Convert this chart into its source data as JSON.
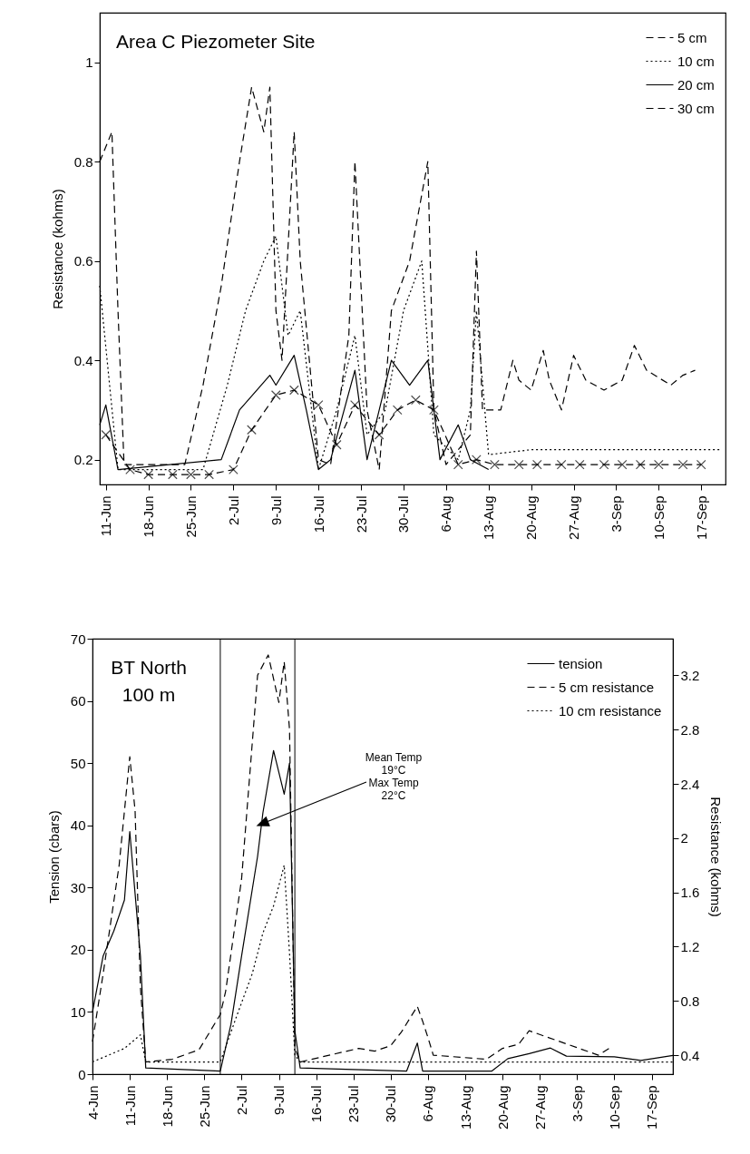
{
  "chart_data": [
    {
      "type": "line",
      "title": "Area C Piezometer Site",
      "ylabel": "Resistance (kohms)",
      "xlim": [
        "--06-10",
        "--09-21"
      ],
      "xticks": [
        {
          "value": "--06-11",
          "label": "11-Jun"
        },
        {
          "value": "--06-18",
          "label": "18-Jun"
        },
        {
          "value": "--06-25",
          "label": "25-Jun"
        },
        {
          "value": "--07-02",
          "label": "2-Jul"
        },
        {
          "value": "--07-09",
          "label": "9-Jul"
        },
        {
          "value": "--07-16",
          "label": "16-Jul"
        },
        {
          "value": "--07-23",
          "label": "23-Jul"
        },
        {
          "value": "--07-30",
          "label": "30-Jul"
        },
        {
          "value": "--08-06",
          "label": "6-Aug"
        },
        {
          "value": "--08-13",
          "label": "13-Aug"
        },
        {
          "value": "--08-20",
          "label": "20-Aug"
        },
        {
          "value": "--08-27",
          "label": "27-Aug"
        },
        {
          "value": "--09-03",
          "label": "3-Sep"
        },
        {
          "value": "--09-10",
          "label": "10-Sep"
        },
        {
          "value": "--09-17",
          "label": "17-Sep"
        }
      ],
      "ylim": [
        0.15,
        1.1
      ],
      "yticks": [
        0.2,
        0.4,
        0.6,
        0.8,
        1
      ],
      "legend": "top right",
      "series": [
        {
          "name": "5 cm",
          "color": "#000000",
          "line_style": "dashed",
          "x": [
            "--06-10",
            "--06-12",
            "--06-13",
            "--06-14",
            "--06-24",
            "--06-27",
            "--06-30",
            "--07-03",
            "--07-05",
            "--07-07",
            "--07-08",
            "--07-09",
            "--07-10",
            "--07-12",
            "--07-13",
            "--07-16",
            "--07-18",
            "--07-21",
            "--07-22",
            "--07-24",
            "--07-26",
            "--07-28",
            "--07-31",
            "--08-03",
            "--08-04",
            "--08-06",
            "--08-10",
            "--08-11",
            "--08-12",
            "--08-15",
            "--08-17",
            "--08-18",
            "--08-20",
            "--08-22",
            "--08-23",
            "--08-25",
            "--08-27",
            "--08-29",
            "--09-01",
            "--09-04",
            "--09-06",
            "--09-08",
            "--09-12",
            "--09-14",
            "--09-16"
          ],
          "values": [
            0.8,
            0.86,
            0.5,
            0.19,
            0.19,
            0.35,
            0.55,
            0.8,
            0.95,
            0.86,
            0.95,
            0.5,
            0.4,
            0.86,
            0.6,
            0.2,
            0.19,
            0.45,
            0.8,
            0.3,
            0.18,
            0.5,
            0.6,
            0.8,
            0.3,
            0.19,
            0.25,
            0.62,
            0.3,
            0.3,
            0.4,
            0.36,
            0.34,
            0.42,
            0.36,
            0.3,
            0.41,
            0.36,
            0.34,
            0.36,
            0.43,
            0.38,
            0.35,
            0.37,
            0.38
          ]
        },
        {
          "name": "10 cm",
          "color": "#000000",
          "line_style": "dotted",
          "x": [
            "--06-10",
            "--06-13",
            "--06-27",
            "--07-01",
            "--07-04",
            "--07-07",
            "--07-09",
            "--07-11",
            "--07-13",
            "--07-16",
            "--07-19",
            "--07-22",
            "--07-24",
            "--07-27",
            "--07-30",
            "--08-02",
            "--08-04",
            "--08-08",
            "--08-10",
            "--08-11",
            "--08-13",
            "--08-20",
            "--09-20"
          ],
          "values": [
            0.55,
            0.18,
            0.18,
            0.35,
            0.5,
            0.6,
            0.65,
            0.45,
            0.5,
            0.18,
            0.3,
            0.45,
            0.25,
            0.3,
            0.5,
            0.6,
            0.25,
            0.2,
            0.3,
            0.5,
            0.21,
            0.22,
            0.22
          ]
        },
        {
          "name": "20 cm",
          "color": "#000000",
          "line_style": "solid",
          "x": [
            "--06-10",
            "--06-11",
            "--06-13",
            "--06-30",
            "--07-03",
            "--07-08",
            "--07-09",
            "--07-12",
            "--07-14",
            "--07-16",
            "--07-18",
            "--07-22",
            "--07-24",
            "--07-26",
            "--07-28",
            "--07-31",
            "--08-03",
            "--08-05",
            "--08-08",
            "--08-10",
            "--08-13"
          ],
          "values": [
            0.27,
            0.31,
            0.18,
            0.2,
            0.3,
            0.37,
            0.35,
            0.41,
            0.3,
            0.18,
            0.2,
            0.38,
            0.2,
            0.3,
            0.4,
            0.35,
            0.4,
            0.2,
            0.27,
            0.2,
            0.18
          ]
        },
        {
          "name": "30 cm",
          "color": "#000000",
          "line_style": "dashed",
          "marker": "cross",
          "x": [
            "--06-11",
            "--06-15",
            "--06-18",
            "--06-22",
            "--06-25",
            "--06-28",
            "--07-02",
            "--07-05",
            "--07-09",
            "--07-12",
            "--07-16",
            "--07-19",
            "--07-22",
            "--07-26",
            "--07-29",
            "--08-01",
            "--08-04",
            "--08-08",
            "--08-11",
            "--08-14",
            "--08-18",
            "--08-21",
            "--08-25",
            "--08-28",
            "--09-01",
            "--09-04",
            "--09-07",
            "--09-10",
            "--09-14",
            "--09-17"
          ],
          "values": [
            0.25,
            0.18,
            0.17,
            0.17,
            0.17,
            0.17,
            0.18,
            0.26,
            0.33,
            0.34,
            0.31,
            0.23,
            0.31,
            0.25,
            0.3,
            0.32,
            0.3,
            0.19,
            0.2,
            0.19,
            0.19,
            0.19,
            0.19,
            0.19,
            0.19,
            0.19,
            0.19,
            0.19,
            0.19,
            0.19
          ]
        }
      ]
    },
    {
      "type": "line",
      "title": "BT North\n100 m",
      "ylabel": "Tension (cbars)",
      "y2label": "Resistance (kohms)",
      "xlim": [
        "--06-04",
        "--09-21"
      ],
      "xticks": [
        {
          "value": "--06-04",
          "label": "4-Jun"
        },
        {
          "value": "--06-11",
          "label": "11-Jun"
        },
        {
          "value": "--06-18",
          "label": "18-Jun"
        },
        {
          "value": "--06-25",
          "label": "25-Jun"
        },
        {
          "value": "--07-02",
          "label": "2-Jul"
        },
        {
          "value": "--07-09",
          "label": "9-Jul"
        },
        {
          "value": "--07-16",
          "label": "16-Jul"
        },
        {
          "value": "--07-23",
          "label": "23-Jul"
        },
        {
          "value": "--07-30",
          "label": "30-Jul"
        },
        {
          "value": "--08-06",
          "label": "6-Aug"
        },
        {
          "value": "--08-13",
          "label": "13-Aug"
        },
        {
          "value": "--08-20",
          "label": "20-Aug"
        },
        {
          "value": "--08-27",
          "label": "27-Aug"
        },
        {
          "value": "--09-03",
          "label": "3-Sep"
        },
        {
          "value": "--09-10",
          "label": "10-Sep"
        },
        {
          "value": "--09-17",
          "label": "17-Sep"
        }
      ],
      "ylim": [
        0,
        70
      ],
      "yticks": [
        0,
        10,
        20,
        30,
        40,
        50,
        60,
        70
      ],
      "y2lim": [
        0.26,
        3.47
      ],
      "y2ticks": [
        0.4,
        0.8,
        1.2,
        1.6,
        2,
        2.4,
        2.8,
        3.2
      ],
      "legend": "top right",
      "ref_lines": [
        {
          "axis": "x",
          "value": "--06-28",
          "color": "#000000"
        },
        {
          "axis": "x",
          "value": "--07-12",
          "color": "#000000"
        }
      ],
      "annotations": [
        "Mean Temp\n19°C\nMax Temp\n22°C"
      ],
      "series": [
        {
          "name": "tension",
          "color": "#000000",
          "line_style": "solid",
          "x": [
            "--06-04",
            "--06-06",
            "--06-08",
            "--06-10",
            "--06-11",
            "--06-13",
            "--06-14",
            "--06-28",
            "--06-30",
            "--07-02",
            "--07-05",
            "--07-06",
            "--07-08",
            "--07-10",
            "--07-11",
            "--07-12",
            "--07-13",
            "--08-02",
            "--08-04",
            "--08-05",
            "--08-18",
            "--08-21",
            "--08-25",
            "--08-29",
            "--09-01",
            "--09-10",
            "--09-15",
            "--09-21"
          ],
          "values": [
            10,
            19,
            23,
            28,
            39,
            19,
            1,
            0.5,
            8,
            19,
            35,
            42,
            52,
            45,
            50,
            7,
            1,
            0.5,
            5,
            0.5,
            0.5,
            2.5,
            3.3,
            4.2,
            2.9,
            2.8,
            2.2,
            3
          ]
        },
        {
          "name": "5 cm resistance",
          "color": "#000000",
          "line_style": "dashed",
          "axis": "y2",
          "x": [
            "--06-04",
            "--06-06",
            "--06-09",
            "--06-11",
            "--06-12",
            "--06-13",
            "--06-14",
            "--06-19",
            "--06-24",
            "--06-28",
            "--06-29",
            "--07-02",
            "--07-05",
            "--07-07",
            "--07-09",
            "--07-10",
            "--07-11",
            "--07-12",
            "--07-13",
            "--07-24",
            "--07-27",
            "--07-30",
            "--08-01",
            "--08-04",
            "--08-05",
            "--08-06",
            "--08-07",
            "--08-17",
            "--08-20",
            "--08-23",
            "--08-25",
            "--09-07",
            "--09-09"
          ],
          "values": [
            0.5,
            1.0,
            1.8,
            2.6,
            2.2,
            0.9,
            0.35,
            0.37,
            0.44,
            0.7,
            0.87,
            1.7,
            3.2,
            3.35,
            3.0,
            3.3,
            2.8,
            0.45,
            0.35,
            0.45,
            0.43,
            0.47,
            0.57,
            0.76,
            0.65,
            0.53,
            0.4,
            0.37,
            0.45,
            0.48,
            0.58,
            0.4,
            0.45
          ]
        },
        {
          "name": "10 cm resistance",
          "color": "#000000",
          "line_style": "dotted",
          "axis": "y2",
          "x": [
            "--06-04",
            "--06-10",
            "--06-13",
            "--06-14",
            "--06-28",
            "--07-01",
            "--07-04",
            "--07-06",
            "--07-08",
            "--07-10",
            "--07-11",
            "--07-12",
            "--07-13",
            "--09-21"
          ],
          "values": [
            0.35,
            0.45,
            0.55,
            0.35,
            0.35,
            0.68,
            1.0,
            1.3,
            1.5,
            1.8,
            1.15,
            0.4,
            0.35,
            0.35
          ]
        }
      ]
    }
  ]
}
